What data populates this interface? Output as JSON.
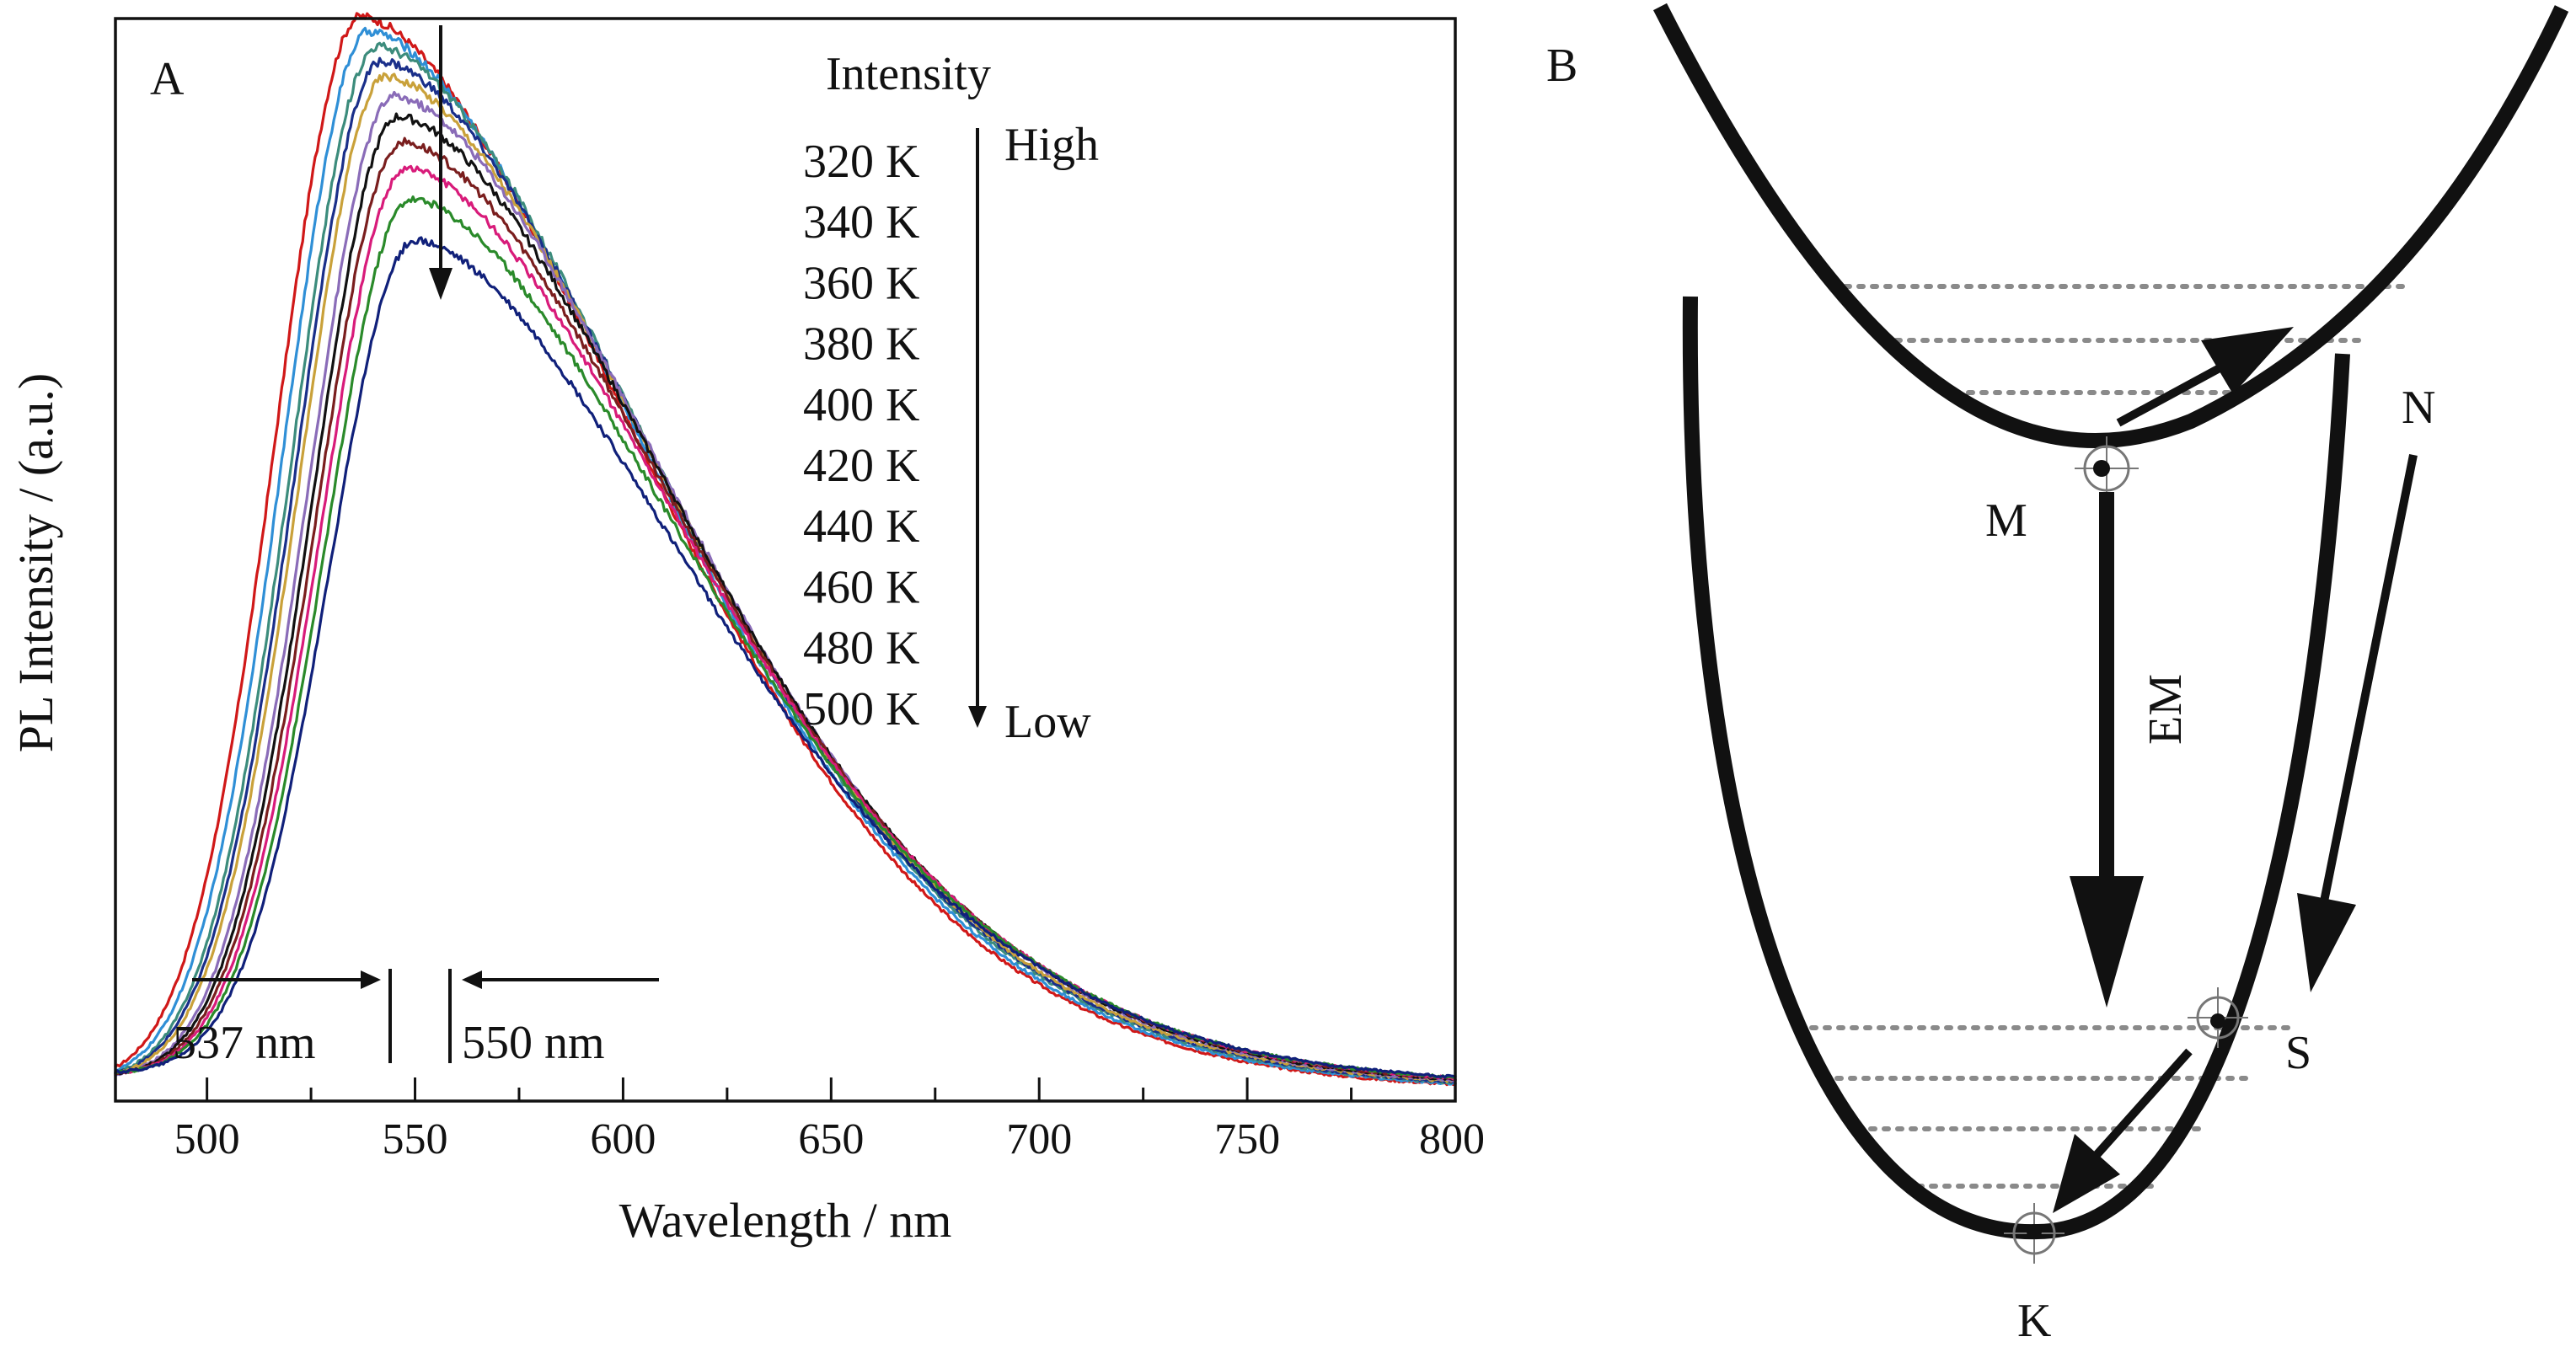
{
  "chart_data": {
    "type": "line",
    "panel_label": "A",
    "xlabel": "Wavelength / nm",
    "ylabel": "PL Intensity / (a.u.)",
    "xlim": [
      478,
      800
    ],
    "ylim": [
      0,
      1.0
    ],
    "x_ticks": [
      500,
      550,
      600,
      650,
      700,
      750,
      800
    ],
    "y_ticks": [],
    "grid": false,
    "legend": {
      "title": "Intensity",
      "high_label": "High",
      "low_label": "Low",
      "placement": "top-right"
    },
    "annotations": {
      "peak_left": "537 nm",
      "peak_right": "550 nm"
    },
    "series": [
      {
        "name": "320 K",
        "color": "#d01818",
        "peak_x": 537,
        "peak_y": 1.0,
        "tail_y": 0.01
      },
      {
        "name": "340 K",
        "color": "#2f8fd6",
        "peak_x": 539,
        "peak_y": 0.985,
        "tail_y": 0.011
      },
      {
        "name": "360 K",
        "color": "#3c8c7c",
        "peak_x": 541,
        "peak_y": 0.97,
        "tail_y": 0.012
      },
      {
        "name": "380 K",
        "color": "#1a2f8a",
        "peak_x": 542,
        "peak_y": 0.955,
        "tail_y": 0.013
      },
      {
        "name": "400 K",
        "color": "#c9a13a",
        "peak_x": 543,
        "peak_y": 0.94,
        "tail_y": 0.014
      },
      {
        "name": "420 K",
        "color": "#8a6cb8",
        "peak_x": 545,
        "peak_y": 0.92,
        "tail_y": 0.015
      },
      {
        "name": "440 K",
        "color": "#111111",
        "peak_x": 546,
        "peak_y": 0.9,
        "tail_y": 0.016
      },
      {
        "name": "460 K",
        "color": "#7a1e1e",
        "peak_x": 547,
        "peak_y": 0.875,
        "tail_y": 0.017
      },
      {
        "name": "480 K",
        "color": "#d81b7a",
        "peak_x": 548,
        "peak_y": 0.85,
        "tail_y": 0.018
      },
      {
        "name": "500 K",
        "color": "#2a8a2a",
        "peak_x": 549,
        "peak_y": 0.82,
        "tail_y": 0.019
      },
      {
        "name": "",
        "color": "#10207a",
        "peak_x": 550,
        "peak_y": 0.78,
        "tail_y": 0.02
      }
    ]
  },
  "diagram": {
    "panel_label": "B",
    "labels": {
      "M": "M",
      "N": "N",
      "S": "S",
      "K": "K",
      "EM": "EM"
    }
  }
}
